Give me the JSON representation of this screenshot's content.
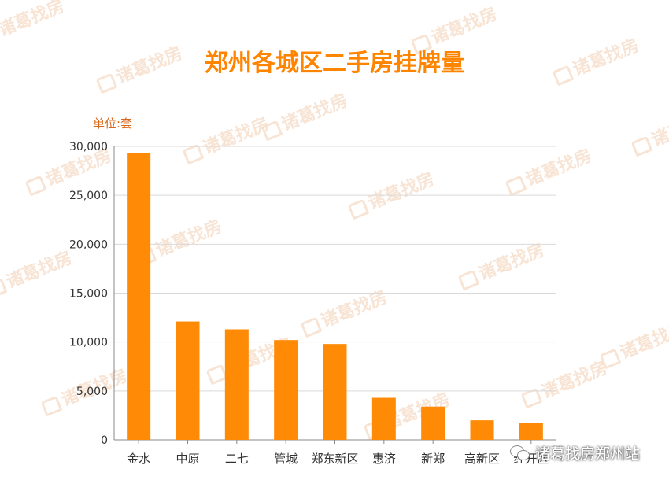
{
  "chart_data": {
    "type": "bar",
    "title": "郑州各城区二手房挂牌量",
    "unit_label": "单位:套",
    "categories": [
      "金水",
      "中原",
      "二七",
      "管城",
      "郑东新区",
      "惠济",
      "新郑",
      "高新区",
      "经开区"
    ],
    "values": [
      29300,
      12100,
      11300,
      10200,
      9800,
      4300,
      3400,
      2000,
      1700
    ],
    "ylim": [
      0,
      30000
    ],
    "yticks": [
      0,
      5000,
      10000,
      15000,
      20000,
      25000,
      30000
    ],
    "ytick_labels": [
      "0",
      "5,000",
      "10,000",
      "15,000",
      "20,000",
      "25,000",
      "30,000"
    ],
    "grid": true,
    "bar_color": "#ff8a05"
  },
  "watermark_text": "诸葛找房",
  "footer": {
    "brand": "诸葛找房郑州站",
    "icon": "wechat-icon"
  }
}
